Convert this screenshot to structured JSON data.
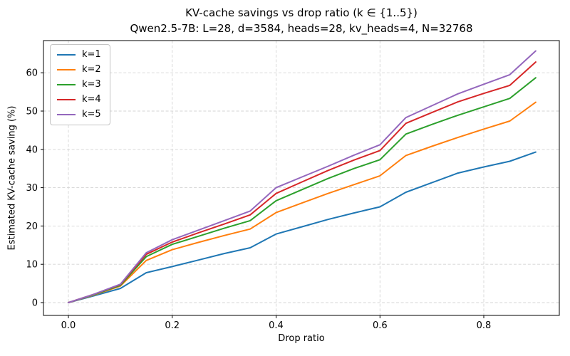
{
  "chart_data": {
    "type": "line",
    "title": "KV-cache savings vs drop ratio (k ∈ {1..5})",
    "subtitle": "Qwen2.5-7B: L=28, d=3584, heads=28, kv_heads=4, N=32768",
    "xlabel": "Drop ratio",
    "ylabel": "Estimated KV-cache saving (%)",
    "x": [
      0.0,
      0.05,
      0.1,
      0.15,
      0.2,
      0.25,
      0.3,
      0.35,
      0.4,
      0.45,
      0.5,
      0.55,
      0.6,
      0.65,
      0.7,
      0.75,
      0.8,
      0.85,
      0.9
    ],
    "series": [
      {
        "name": "k=1",
        "color": "#1f77b4",
        "values": [
          0.0,
          1.8,
          3.7,
          7.8,
          9.4,
          11.1,
          12.8,
          14.3,
          17.9,
          19.8,
          21.7,
          23.4,
          25.0,
          28.8,
          31.3,
          33.8,
          35.4,
          36.9,
          39.3
        ]
      },
      {
        "name": "k=2",
        "color": "#ff7f0e",
        "values": [
          0.0,
          2.0,
          4.3,
          11.0,
          13.8,
          15.7,
          17.5,
          19.2,
          23.5,
          26.0,
          28.5,
          30.8,
          33.1,
          38.4,
          40.8,
          43.1,
          45.3,
          47.4,
          52.3
        ]
      },
      {
        "name": "k=3",
        "color": "#2ca02c",
        "values": [
          0.0,
          2.1,
          4.5,
          12.0,
          15.2,
          17.3,
          19.4,
          21.4,
          26.6,
          29.5,
          32.4,
          35.0,
          37.3,
          44.0,
          46.5,
          48.9,
          51.1,
          53.3,
          58.7
        ]
      },
      {
        "name": "k=4",
        "color": "#d62728",
        "values": [
          0.0,
          2.2,
          4.7,
          12.6,
          15.8,
          18.2,
          20.5,
          22.9,
          28.5,
          31.5,
          34.5,
          37.2,
          39.7,
          46.8,
          49.6,
          52.4,
          54.6,
          56.7,
          62.8
        ]
      },
      {
        "name": "k=5",
        "color": "#9467bd",
        "values": [
          0.0,
          2.2,
          4.8,
          13.0,
          16.4,
          18.9,
          21.4,
          23.9,
          30.0,
          32.8,
          35.6,
          38.5,
          41.2,
          48.3,
          51.4,
          54.5,
          57.0,
          59.5,
          65.7
        ]
      }
    ],
    "xticks": [
      0.0,
      0.2,
      0.4,
      0.6,
      0.8
    ],
    "xtick_labels": [
      "0.0",
      "0.2",
      "0.4",
      "0.6",
      "0.8"
    ],
    "yticks": [
      0,
      10,
      20,
      30,
      40,
      50,
      60
    ],
    "ytick_labels": [
      "0",
      "10",
      "20",
      "30",
      "40",
      "50",
      "60"
    ],
    "xlim": [
      -0.048,
      0.9454
    ],
    "ylim": [
      -3.35,
      68.4
    ],
    "grid": true,
    "grid_color": "#d4d4d4",
    "spine_color": "#000000",
    "legend_position": "upper left",
    "legend": [
      "k=1",
      "k=2",
      "k=3",
      "k=4",
      "k=5"
    ]
  }
}
